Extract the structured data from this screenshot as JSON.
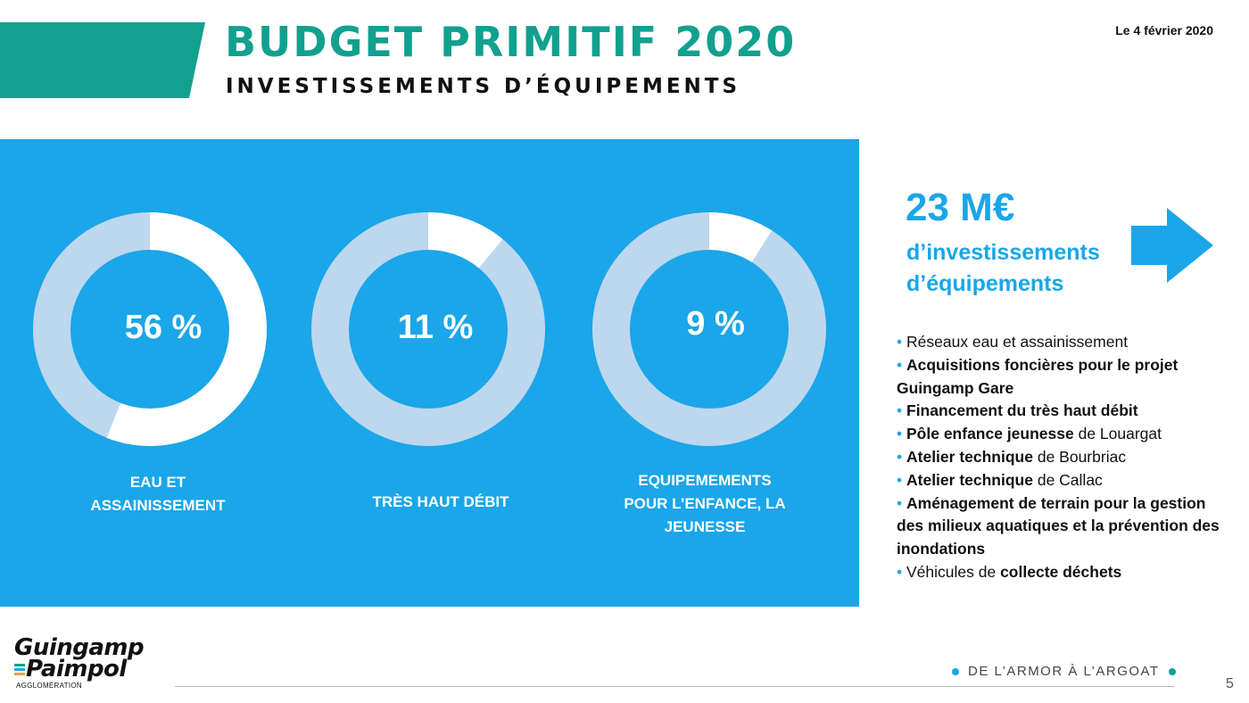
{
  "colors": {
    "teal": "#12A08F",
    "panel_blue": "#1AA6E8",
    "ring_light": "#BDD7EE",
    "ring_white": "#FFFFFF",
    "text_blue": "#1AA6E8"
  },
  "header": {
    "title": "BUDGET PRIMITIF 2020",
    "subtitle": "INVESTISSEMENTS D’ÉQUIPEMENTS",
    "date": "Le 4 février 2020"
  },
  "donuts": [
    {
      "percent_text": "56 %",
      "share": 0.56,
      "label_lines": [
        "EAU ET",
        "ASSAINISSEMENT"
      ]
    },
    {
      "percent_text": "11 %",
      "share": 0.11,
      "label_lines": [
        "TRÈS HAUT DÉBIT"
      ]
    },
    {
      "percent_text": "9 %",
      "share": 0.09,
      "label_lines": [
        "EQUIPEMEMENTS",
        "POUR L’ENFANCE, LA",
        "JEUNESSE"
      ]
    }
  ],
  "summary": {
    "amount": "23 M€",
    "description_line1": "d’investissements",
    "description_line2": "d’équipements",
    "arrow_icon": "right-arrow-icon"
  },
  "bullets": [
    {
      "parts": [
        {
          "t": "Réseaux eau et assainissement",
          "b": false
        }
      ]
    },
    {
      "parts": [
        {
          "t": "Acquisitions foncières pour le projet Guingamp Gare",
          "b": true
        }
      ]
    },
    {
      "parts": [
        {
          "t": "Financement du très haut débit",
          "b": true
        }
      ]
    },
    {
      "parts": [
        {
          "t": "Pôle enfance jeunesse",
          "b": true
        },
        {
          "t": " de Louargat",
          "b": false
        }
      ]
    },
    {
      "parts": [
        {
          "t": "Atelier technique",
          "b": true
        },
        {
          "t": " de Bourbriac",
          "b": false
        }
      ]
    },
    {
      "parts": [
        {
          "t": "Atelier technique",
          "b": true
        },
        {
          "t": " de Callac",
          "b": false
        }
      ]
    },
    {
      "parts": [
        {
          "t": "Aménagement de terrain pour la gestion des milieux aquatiques et la prévention des inondations",
          "b": true
        }
      ]
    },
    {
      "parts": [
        {
          "t": "Véhicules de ",
          "b": false
        },
        {
          "t": "collecte déchets",
          "b": true
        }
      ]
    }
  ],
  "logo": {
    "line1": "Guingamp",
    "line2": "Paimpol",
    "sub": "AGGLOMÉRATION",
    "bar_colors": [
      "#12A08F",
      "#1AA6E8",
      "#E8A23A"
    ]
  },
  "footer": {
    "tagline": "DE L’ARMOR À L’ARGOAT",
    "dot_left_color": "#1AA6E8",
    "dot_right_color": "#12A08F",
    "page_number": "5"
  }
}
